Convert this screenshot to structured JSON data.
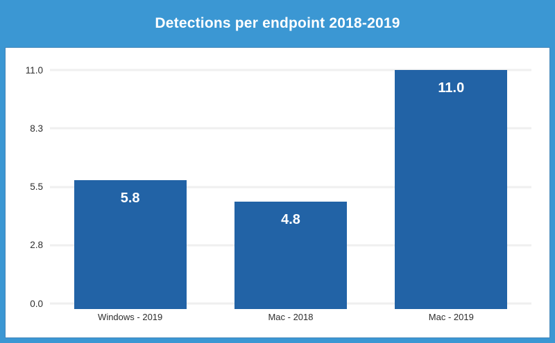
{
  "header": {
    "title": "Detections per endpoint 2018-2019"
  },
  "colors": {
    "frame_blue": "#3b97d3",
    "bar_blue": "#2263a6",
    "gridline": "#efefef",
    "axis_text": "#2d2d2d",
    "title_text": "#ffffff",
    "value_label_text": "#ffffff",
    "panel_bg": "#ffffff",
    "panel_border": "#4286ba"
  },
  "chart_data": {
    "type": "bar",
    "title": "Detections per endpoint 2018-2019",
    "categories": [
      "Windows - 2019",
      "Mac - 2018",
      "Mac - 2019"
    ],
    "values": [
      5.8,
      4.8,
      11.0
    ],
    "value_labels": [
      "5.8",
      "4.8",
      "11.0"
    ],
    "xlabel": "",
    "ylabel": "",
    "ylim": [
      0,
      11
    ],
    "yticks": [
      0,
      2.75,
      5.5,
      8.25,
      11
    ],
    "ytick_labels": [
      "0.0",
      "2.8",
      "5.5",
      "8.3",
      "11.0"
    ],
    "grid": true,
    "legend": false,
    "legend_position": "none",
    "bar_color": "#2263a6"
  }
}
